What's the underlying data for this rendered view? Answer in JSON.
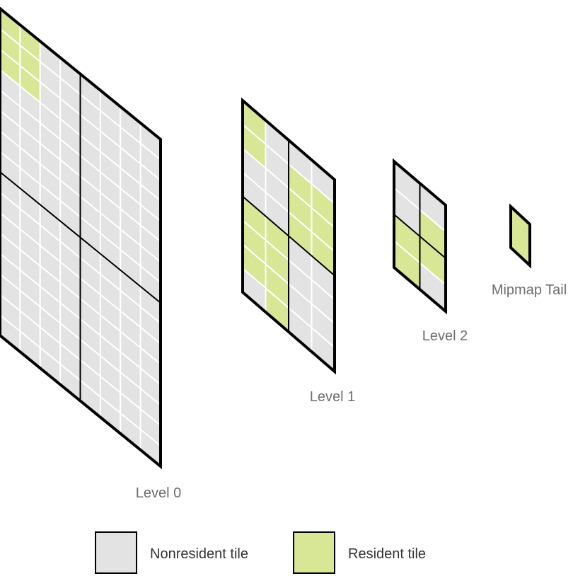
{
  "colors": {
    "nonresident": "#e3e3e3",
    "resident": "#d7e795",
    "grid": "#ffffff",
    "outline": "#000000",
    "label": "#6e6e6e",
    "legend_text": "#333333"
  },
  "levels": [
    {
      "label": "Level 0",
      "cols": 8,
      "rows": 16,
      "resident_tiles": [
        [
          0,
          0
        ],
        [
          1,
          0
        ],
        [
          0,
          1
        ],
        [
          1,
          1
        ],
        [
          0,
          2
        ],
        [
          1,
          2
        ]
      ]
    },
    {
      "label": "Level 1",
      "cols": 4,
      "rows": 8,
      "resident_tiles": [
        [
          0,
          0
        ],
        [
          0,
          1
        ],
        [
          2,
          1
        ],
        [
          3,
          1
        ],
        [
          2,
          2
        ],
        [
          3,
          2
        ],
        [
          2,
          3
        ],
        [
          3,
          3
        ],
        [
          0,
          4
        ],
        [
          1,
          4
        ],
        [
          0,
          5
        ],
        [
          1,
          5
        ],
        [
          0,
          6
        ],
        [
          1,
          6
        ],
        [
          1,
          7
        ]
      ]
    },
    {
      "label": "Level 2",
      "cols": 2,
      "rows": 4,
      "resident_tiles": [
        [
          1,
          1
        ],
        [
          1,
          2
        ],
        [
          0,
          2
        ],
        [
          0,
          3
        ]
      ]
    }
  ],
  "mip_tail": {
    "label": "Mipmap Tail",
    "resident": true
  },
  "legend": [
    {
      "label": "Nonresident tile",
      "kind": "nonresident"
    },
    {
      "label": "Resident tile",
      "kind": "resident"
    }
  ]
}
